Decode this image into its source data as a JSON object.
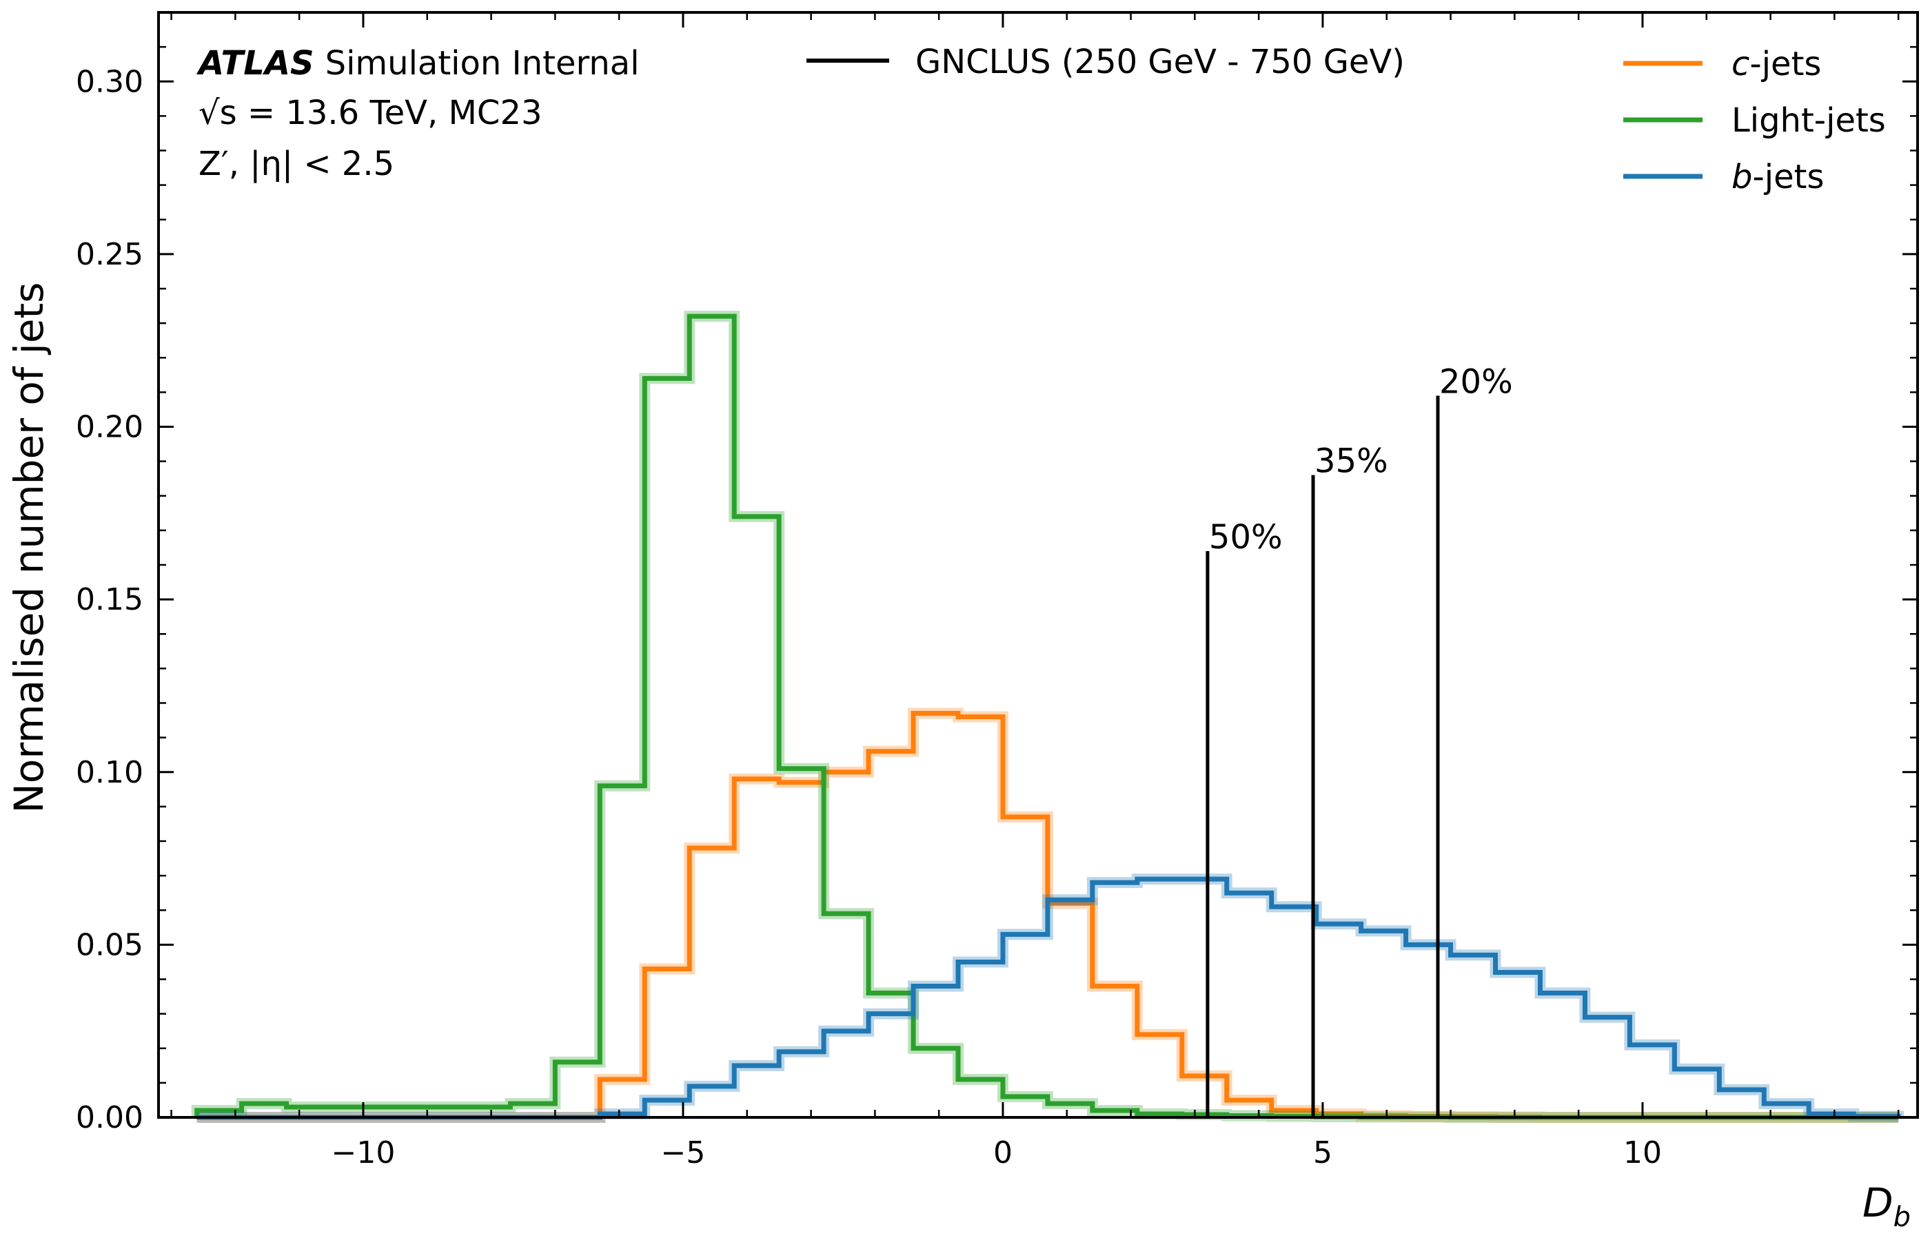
{
  "chart_data": {
    "type": "line",
    "subtype": "step-histogram",
    "xlabel": "D",
    "xlabel_sub": "b",
    "ylabel": "Normalised number of jets",
    "xlim": [
      -13.2,
      14.3
    ],
    "ylim": [
      0,
      0.32
    ],
    "xticks": [
      -10,
      -5,
      0,
      5,
      10
    ],
    "xtick_labels": [
      "−10",
      "−5",
      "0",
      "5",
      "10"
    ],
    "yticks": [
      0,
      0.05,
      0.1,
      0.15,
      0.2,
      0.25,
      0.3
    ],
    "ytick_labels": [
      "0.00",
      "0.05",
      "0.10",
      "0.15",
      "0.20",
      "0.25",
      "0.30"
    ],
    "grid": false,
    "legend_position": "top-right",
    "annotations": {
      "line1_bold": "ATLAS",
      "line1_rest": "Simulation Internal",
      "line2": "√s = 13.6 TeV, MC23",
      "line3": "Z′, |η| < 2.5"
    },
    "tagger_legend": {
      "label": "GNCLUS (250 GeV - 750 GeV)",
      "color": "#000000"
    },
    "bin_edges": [
      -12.6,
      -11.9,
      -11.2,
      -10.5,
      -9.8,
      -9.1,
      -8.4,
      -7.7,
      -7.0,
      -6.3,
      -5.6,
      -4.9,
      -4.2,
      -3.5,
      -2.8,
      -2.1,
      -1.4,
      -0.7,
      0.0,
      0.7,
      1.4,
      2.1,
      2.8,
      3.5,
      4.2,
      4.9,
      5.6,
      6.3,
      7.0,
      7.7,
      8.4,
      9.1,
      9.8,
      10.5,
      11.2,
      11.9,
      12.6,
      13.3,
      14.0
    ],
    "series": [
      {
        "name": "c-jets",
        "name_italic": "c",
        "name_rest": "-jets",
        "color": "#ff7f0e",
        "values": [
          0.0,
          0.0,
          0.0,
          0.0,
          0.0,
          0.0,
          0.0,
          0.0,
          0.0,
          0.011,
          0.043,
          0.078,
          0.098,
          0.097,
          0.1,
          0.106,
          0.117,
          0.116,
          0.087,
          0.062,
          0.038,
          0.024,
          0.012,
          0.005,
          0.002,
          0.001,
          0.0005,
          0.0003,
          0.0002,
          0.0001,
          0.0,
          0.0,
          0.0,
          0.0,
          0.0,
          0.0,
          0.0,
          0.0
        ]
      },
      {
        "name": "Light-jets",
        "name_italic": "",
        "name_rest": "Light-jets",
        "color": "#2ca02c",
        "values": [
          0.002,
          0.004,
          0.003,
          0.003,
          0.003,
          0.003,
          0.003,
          0.004,
          0.016,
          0.096,
          0.214,
          0.232,
          0.174,
          0.101,
          0.059,
          0.036,
          0.02,
          0.011,
          0.006,
          0.004,
          0.002,
          0.001,
          0.0008,
          0.0005,
          0.0003,
          0.0002,
          0.0001,
          0.0001,
          0.0,
          0.0,
          0.0,
          0.0,
          0.0,
          0.0,
          0.0,
          0.0,
          0.0,
          0.0
        ]
      },
      {
        "name": "b-jets",
        "name_italic": "b",
        "name_rest": "-jets",
        "color": "#1f77b4",
        "values": [
          0.0,
          0.0,
          0.0,
          0.0,
          0.0,
          0.0,
          0.0,
          0.0,
          0.0,
          0.001,
          0.005,
          0.009,
          0.015,
          0.019,
          0.025,
          0.03,
          0.038,
          0.045,
          0.053,
          0.063,
          0.068,
          0.069,
          0.069,
          0.065,
          0.061,
          0.056,
          0.054,
          0.05,
          0.047,
          0.042,
          0.036,
          0.029,
          0.021,
          0.014,
          0.008,
          0.004,
          0.001,
          0.0003
        ]
      }
    ],
    "working_points": [
      {
        "label": "50%",
        "x": 3.2,
        "height": 0.164
      },
      {
        "label": "35%",
        "x": 4.85,
        "height": 0.186
      },
      {
        "label": "20%",
        "x": 6.8,
        "height": 0.209
      }
    ]
  }
}
